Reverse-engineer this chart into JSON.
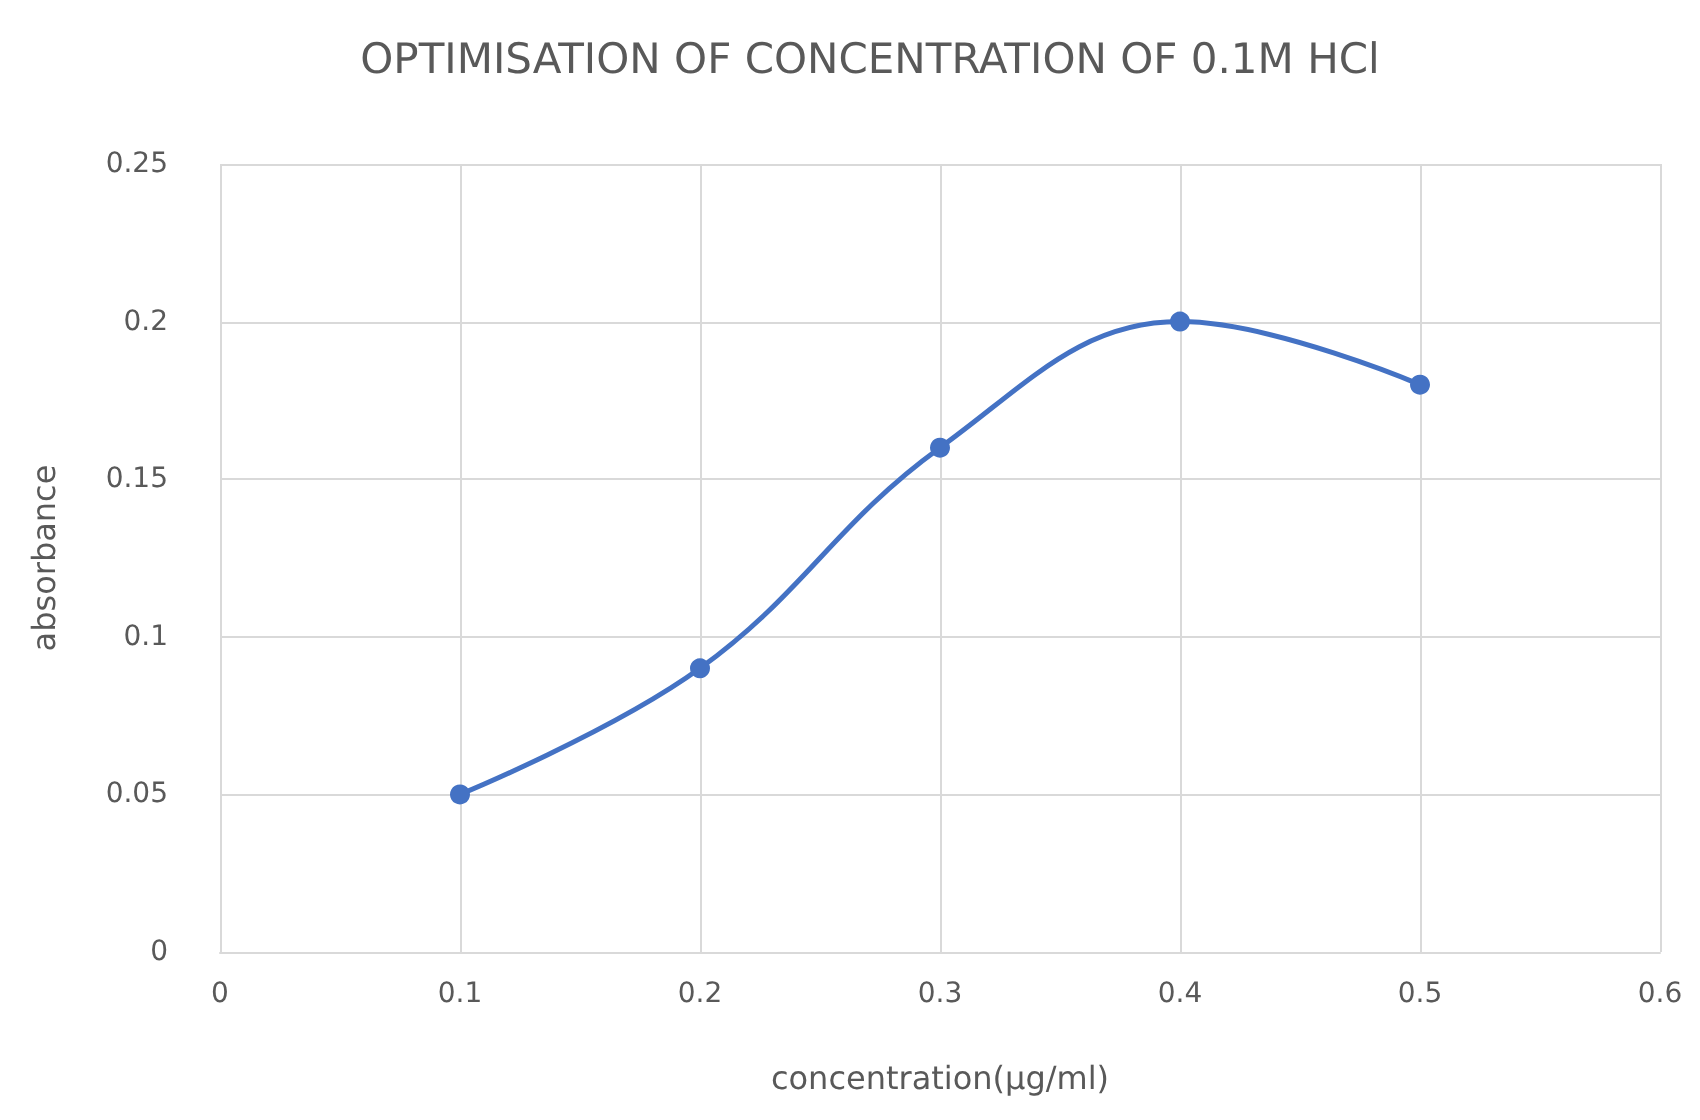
{
  "chart_data": {
    "type": "line",
    "title": "OPTIMISATION OF CONCENTRATION OF 0.1M HCl",
    "xlabel": "concentration(µg/ml)",
    "ylabel": "absorbance",
    "x": [
      0.1,
      0.2,
      0.3,
      0.4,
      0.5
    ],
    "series": [
      {
        "color": "#4472c4",
        "values": [
          0.05,
          0.09,
          0.16,
          0.2,
          0.18
        ]
      }
    ],
    "xlim": [
      0,
      0.6
    ],
    "xticks": [
      0,
      0.1,
      0.2,
      0.3,
      0.4,
      0.5,
      0.6
    ],
    "ylim": [
      0,
      0.25
    ],
    "yticks": [
      0,
      0.05,
      0.1,
      0.15,
      0.2,
      0.25
    ],
    "grid": true,
    "marker": "circle",
    "line_style": "solid"
  }
}
